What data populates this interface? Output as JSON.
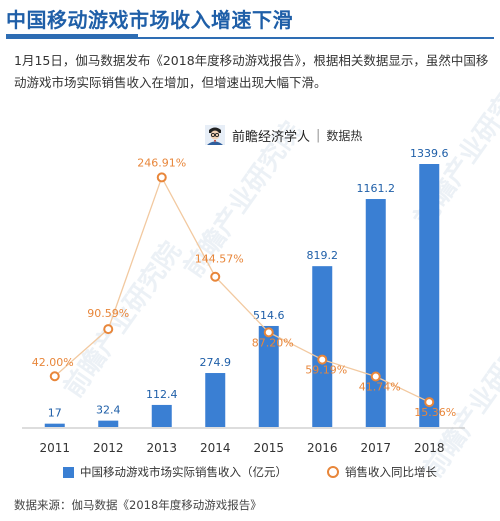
{
  "header": {
    "title": "中国移动游戏市场收入增速下滑",
    "paragraph": "1月15日，伽马数据发布《2018年度移动游戏报告》，根据相关数据显示，虽然中国移动游戏市场实际销售收入在增加，但增速出现大幅下滑。"
  },
  "brand": {
    "name": "前瞻经济学人",
    "separator": "|",
    "sub": "数据热"
  },
  "legend": {
    "bar_label": "中国移动游戏市场实际销售收入（亿元）",
    "line_label": "销售收入同比增长"
  },
  "source": "数据来源：伽马数据《2018年度移动游戏报告》",
  "colors": {
    "bar": "#3a7fd3",
    "line": "#f2c9a0",
    "marker": "#e8863a",
    "title": "#1f5fa8"
  },
  "chart_data": {
    "type": "bar",
    "categories": [
      "2011",
      "2012",
      "2013",
      "2014",
      "2015",
      "2016",
      "2017",
      "2018"
    ],
    "series": [
      {
        "name": "中国移动游戏市场实际销售收入（亿元）",
        "type": "bar",
        "values": [
          17,
          32.4,
          112.4,
          274.9,
          514.6,
          819.2,
          1161.2,
          1339.6
        ],
        "labels": [
          "17",
          "32.4",
          "112.4",
          "274.9",
          "514.6",
          "819.2",
          "1161.2",
          "1339.6"
        ]
      },
      {
        "name": "销售收入同比增长",
        "type": "line",
        "values": [
          42.0,
          90.59,
          246.91,
          144.57,
          87.2,
          59.19,
          41.74,
          15.36
        ],
        "labels": [
          "42.00%",
          "90.59%",
          "246.91%",
          "144.57%",
          "87.20%",
          "59.19%",
          "41.74%",
          "15.36%"
        ]
      }
    ],
    "bar_ylim": [
      0,
      1400
    ],
    "line_ylim": [
      0,
      260
    ],
    "grid": false,
    "legend_position": "bottom"
  }
}
